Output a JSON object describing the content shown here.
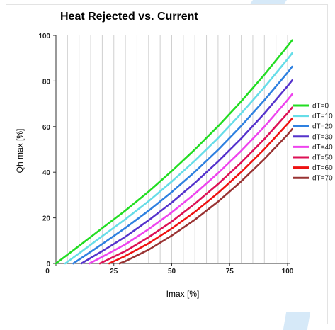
{
  "chart_data": {
    "type": "line",
    "title": "Heat Rejected vs. Current",
    "xlabel": "Imax [%]",
    "ylabel": "Qh max [%]",
    "xlim": [
      0,
      100
    ],
    "ylim": [
      0,
      100
    ],
    "x_ticks": [
      0,
      25,
      50,
      75,
      100
    ],
    "y_ticks": [
      0,
      20,
      40,
      60,
      80,
      100
    ],
    "grid": "vertical",
    "legend_position": "right",
    "series": [
      {
        "name": "dT=0",
        "color": "#22dd22",
        "x": [
          0,
          10,
          20,
          30,
          40,
          50,
          60,
          70,
          80,
          90,
          100,
          102
        ],
        "y": [
          0,
          7.7,
          15.5,
          23.2,
          31.5,
          40.5,
          50.0,
          60.2,
          71.1,
          82.8,
          95.3,
          97.9
        ]
      },
      {
        "name": "dT=10",
        "color": "#66dde8",
        "x": [
          4,
          10,
          20,
          30,
          40,
          50,
          60,
          70,
          80,
          90,
          100,
          102
        ],
        "y": [
          0,
          4.4,
          12.0,
          19.4,
          27.3,
          35.9,
          45.1,
          55.0,
          65.8,
          77.3,
          89.6,
          92.2
        ]
      },
      {
        "name": "dT=20",
        "color": "#2e80e0",
        "x": [
          7.5,
          10,
          20,
          30,
          40,
          50,
          60,
          70,
          80,
          90,
          100,
          102
        ],
        "y": [
          0,
          1.7,
          8.5,
          15.6,
          23.1,
          31.3,
          40.2,
          49.8,
          60.3,
          71.6,
          83.7,
          86.3
        ]
      },
      {
        "name": "dT=30",
        "color": "#5533cc",
        "x": [
          11,
          20,
          30,
          40,
          50,
          60,
          70,
          80,
          90,
          100,
          102
        ],
        "y": [
          0,
          5.4,
          11.7,
          18.9,
          26.7,
          35.3,
          44.7,
          54.8,
          65.8,
          77.8,
          80.3
        ]
      },
      {
        "name": "dT=40",
        "color": "#ee44ee",
        "x": [
          14.5,
          20,
          30,
          40,
          50,
          60,
          70,
          80,
          90,
          100,
          102
        ],
        "y": [
          0,
          2.9,
          8.4,
          15.0,
          22.4,
          30.6,
          39.6,
          49.4,
          60.0,
          71.7,
          74.2
        ]
      },
      {
        "name": "dT=50",
        "color": "#dd1155",
        "x": [
          19,
          20,
          30,
          40,
          50,
          60,
          70,
          80,
          90,
          100,
          102
        ],
        "y": [
          0,
          0.5,
          5.4,
          11.5,
          18.4,
          26.2,
          34.8,
          44.3,
          54.6,
          65.9,
          68.4
        ]
      },
      {
        "name": "dT=60",
        "color": "#ee1111",
        "x": [
          23,
          30,
          40,
          50,
          60,
          70,
          80,
          90,
          100,
          102
        ],
        "y": [
          0,
          3.3,
          8.8,
          15.3,
          22.6,
          30.9,
          40.1,
          50.2,
          61.2,
          63.6
        ]
      },
      {
        "name": "dT=70",
        "color": "#993333",
        "x": [
          27.5,
          30,
          40,
          50,
          60,
          70,
          80,
          90,
          100,
          102
        ],
        "y": [
          0,
          1.0,
          6.0,
          12.2,
          19.2,
          27.1,
          36.0,
          45.8,
          56.5,
          58.9
        ]
      }
    ]
  }
}
